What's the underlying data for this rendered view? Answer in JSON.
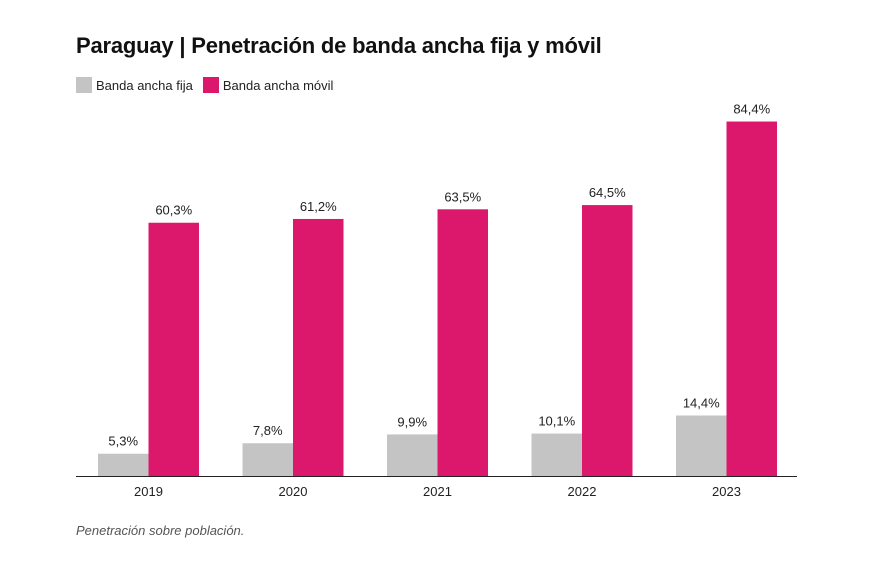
{
  "title": "Paraguay | Penetración de banda ancha fija y móvil",
  "footnote": "Penetración sobre población.",
  "colors": {
    "fija": "#c4c4c4",
    "movil": "#db186c",
    "axis": "#222222"
  },
  "chart_data": {
    "type": "bar",
    "categories": [
      "2019",
      "2020",
      "2021",
      "2022",
      "2023"
    ],
    "series": [
      {
        "name": "Banda ancha fija",
        "values": [
          5.3,
          7.8,
          9.9,
          10.1,
          14.4
        ],
        "labels": [
          "5,3%",
          "7,8%",
          "9,9%",
          "10,1%",
          "14,4%"
        ]
      },
      {
        "name": "Banda ancha móvil",
        "values": [
          60.3,
          61.2,
          63.5,
          64.5,
          84.4
        ],
        "labels": [
          "60,3%",
          "61,2%",
          "63,5%",
          "64,5%",
          "84,4%"
        ]
      }
    ],
    "ylim": [
      0,
      100
    ],
    "grid": false,
    "legend_position": "top-left"
  }
}
